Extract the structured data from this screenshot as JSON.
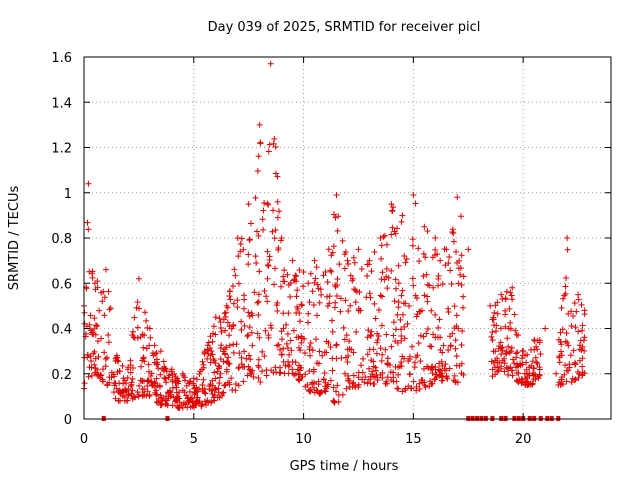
{
  "chart_data": {
    "type": "scatter",
    "title": "Day 039 of 2025, SRMTID for receiver picl",
    "xlabel": "GPS time / hours",
    "ylabel": "SRMTID / TECUs",
    "xlim": [
      0,
      24
    ],
    "ylim": [
      0,
      1.6
    ],
    "xticks": [
      0,
      5,
      10,
      15,
      20
    ],
    "xtick_labels": [
      "0",
      "5",
      "10",
      "15",
      "20"
    ],
    "yticks": [
      0,
      0.2,
      0.4,
      0.6,
      0.8,
      1,
      1.2,
      1.4,
      1.6
    ],
    "ytick_labels": [
      "0",
      "0.2",
      "0.4",
      "0.6",
      "0.8",
      "1",
      "1.2",
      "1.4",
      "1.6"
    ],
    "grid": true,
    "series": [
      {
        "name": "SRMTID",
        "color": "#e00000",
        "marker": "plus",
        "envelope_note": "approximate upper/lower envelope of the point cloud read from the figure",
        "x": [
          0.0,
          0.2,
          0.5,
          1.0,
          1.5,
          2.0,
          2.5,
          3.0,
          3.5,
          4.0,
          4.5,
          5.0,
          5.5,
          6.0,
          6.5,
          7.0,
          7.5,
          8.0,
          8.5,
          9.0,
          9.5,
          10.0,
          10.5,
          11.0,
          11.5,
          12.0,
          12.5,
          13.0,
          13.5,
          14.0,
          14.5,
          15.0,
          15.5,
          16.0,
          16.5,
          17.0,
          17.5,
          18.0,
          18.5,
          19.0,
          19.5,
          20.0,
          20.5,
          21.0,
          21.5,
          22.0,
          22.5,
          22.8
        ],
        "high": [
          0.5,
          1.04,
          0.6,
          0.66,
          0.28,
          0.22,
          0.62,
          0.4,
          0.3,
          0.22,
          0.2,
          0.18,
          0.3,
          0.45,
          0.5,
          0.8,
          0.95,
          1.3,
          1.57,
          0.8,
          0.7,
          0.65,
          0.7,
          0.65,
          0.99,
          0.7,
          0.75,
          0.7,
          0.8,
          0.95,
          0.9,
          0.99,
          0.85,
          0.8,
          0.75,
          0.98,
          0.75,
          null,
          0.5,
          0.55,
          0.58,
          0.3,
          0.35,
          0.4,
          0.2,
          0.8,
          0.55,
          0.48
        ],
        "low": [
          0.12,
          0.18,
          0.2,
          0.15,
          0.08,
          0.08,
          0.1,
          0.1,
          0.06,
          0.06,
          0.04,
          0.05,
          0.06,
          0.08,
          0.12,
          0.12,
          0.2,
          0.16,
          0.2,
          0.2,
          0.2,
          0.15,
          0.1,
          0.12,
          0.06,
          0.14,
          0.14,
          0.15,
          0.16,
          0.15,
          0.12,
          0.12,
          0.14,
          0.15,
          0.18,
          0.16,
          0.2,
          null,
          0.18,
          0.22,
          0.18,
          0.15,
          0.15,
          0.2,
          0.15,
          0.15,
          0.18,
          0.2
        ]
      },
      {
        "name": "zero values",
        "color": "#e00000",
        "marker": "square",
        "x": [
          0.9,
          3.8,
          17.5,
          17.7,
          17.9,
          18.1,
          18.3,
          18.6,
          19.0,
          19.2,
          19.6,
          19.8,
          20.0,
          20.3,
          20.5,
          20.8,
          21.1,
          21.3,
          21.6
        ],
        "y": [
          0,
          0,
          0,
          0,
          0,
          0,
          0,
          0,
          0,
          0,
          0,
          0,
          0,
          0,
          0,
          0,
          0,
          0,
          0
        ]
      }
    ]
  }
}
